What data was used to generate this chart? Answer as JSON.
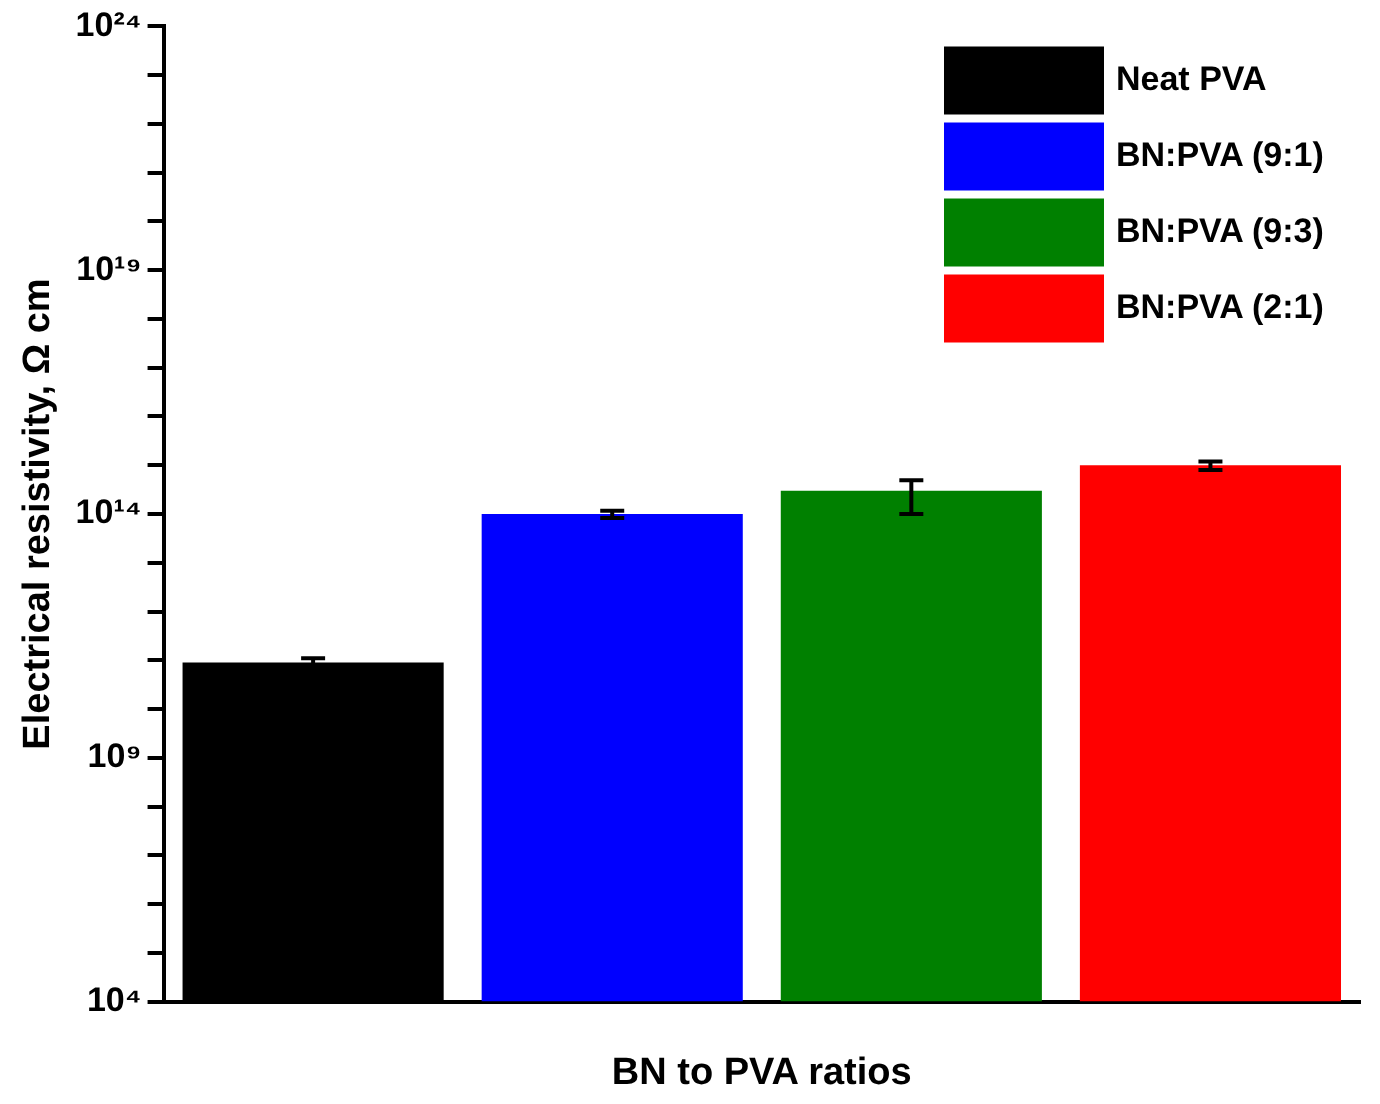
{
  "chart_data": {
    "type": "bar",
    "xlabel": "BN to PVA ratios",
    "ylabel": "Electrical resistivity, Ω cm",
    "categories": [
      null,
      null,
      null,
      null
    ],
    "series": [
      {
        "name": "Neat PVA",
        "color": "#000000",
        "values": [
          90000000000.0,
          null,
          null,
          null
        ],
        "errors": [
          [
            80000000000.0,
            110000000000.0
          ],
          null,
          null,
          null
        ]
      },
      {
        "name": "BN:PVA (9:1)",
        "color": "#0000ff",
        "values": [
          null,
          100000000000000.0,
          null,
          null
        ],
        "errors": [
          null,
          [
            83000000000000.0,
            117000000000000.0
          ],
          null,
          null
        ]
      },
      {
        "name": "BN:PVA (9:3)",
        "color": "#008000",
        "values": [
          null,
          null,
          300000000000000.0,
          null
        ],
        "errors": [
          null,
          null,
          [
            100000000000000.0,
            490000000000000.0
          ],
          null
        ]
      },
      {
        "name": "BN:PVA (2:1)",
        "color": "#ff0000",
        "values": [
          null,
          null,
          null,
          1000000000000000.0
        ],
        "errors": [
          null,
          null,
          null,
          [
            800000000000000.0,
            1200000000000000.0
          ]
        ]
      }
    ],
    "log": "y",
    "ylim": [
      10000.0,
      1e+24
    ],
    "yticks": [
      {
        "value": 10000.0,
        "label": "10⁴"
      },
      {
        "value": 100000.0,
        "label": null
      },
      {
        "value": 1000000.0,
        "label": null
      },
      {
        "value": 10000000.0,
        "label": null
      },
      {
        "value": 100000000.0,
        "label": null
      },
      {
        "value": 1000000000.0,
        "label": "10⁹"
      },
      {
        "value": 10000000000.0,
        "label": null
      },
      {
        "value": 100000000000.0,
        "label": null
      },
      {
        "value": 1000000000000.0,
        "label": null
      },
      {
        "value": 10000000000000.0,
        "label": null
      },
      {
        "value": 100000000000000.0,
        "label": "10¹⁴"
      },
      {
        "value": 1000000000000000.0,
        "label": null
      },
      {
        "value": 1e+16,
        "label": null
      },
      {
        "value": 1e+17,
        "label": null
      },
      {
        "value": 1e+18,
        "label": null
      },
      {
        "value": 1e+19,
        "label": "10¹⁹"
      },
      {
        "value": 1e+20,
        "label": null
      },
      {
        "value": 1e+21,
        "label": null
      },
      {
        "value": 1e+22,
        "label": null
      },
      {
        "value": 1e+23,
        "label": null
      },
      {
        "value": 1e+24,
        "label": "10²⁴"
      }
    ],
    "grid": false,
    "legend": "top right"
  }
}
